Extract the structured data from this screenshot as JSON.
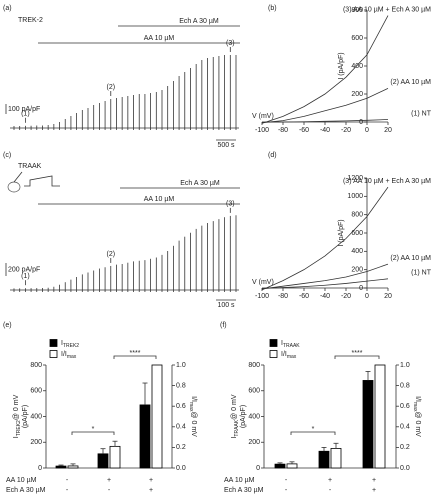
{
  "chart_data": [
    {
      "type": "trace",
      "panel": "(a)",
      "title": "TREK-2",
      "treatments": [
        "Ech A 30 µM",
        "AA 10 µM"
      ],
      "markers": [
        "(1)",
        "(2)",
        "(3)"
      ],
      "scalebar_y": {
        "value": 100,
        "label": "100 pA/pF"
      },
      "scalebar_x": "500 s",
      "color": "#333333",
      "values": [
        20,
        20,
        22,
        22,
        25,
        25,
        30,
        40,
        60,
        90,
        120,
        150,
        180,
        200,
        230,
        250,
        270,
        290,
        300,
        310,
        320,
        330,
        340,
        340,
        350,
        360,
        380,
        420,
        470,
        520,
        560,
        600,
        640,
        680,
        700,
        710,
        720,
        730,
        730,
        730
      ]
    },
    {
      "type": "line",
      "panel": "(b)",
      "xlabel": "V (mV)",
      "ylabel": "I (pA/pF)",
      "x": [
        -100,
        -80,
        -60,
        -40,
        -20,
        0,
        20
      ],
      "xlim": [
        -100,
        20
      ],
      "xticks": [
        -100,
        -80,
        -60,
        -40,
        -20,
        0,
        20
      ],
      "ylim": [
        0,
        800
      ],
      "yticks": [
        0,
        200,
        400,
        600,
        800
      ],
      "series": [
        {
          "name": "(3) AA 10 µM + Ech A 30 µM",
          "color": "#333333",
          "values": [
            -10,
            40,
            110,
            200,
            320,
            480,
            760
          ]
        },
        {
          "name": "(2) AA 10 µM",
          "color": "#333333",
          "values": [
            -5,
            10,
            40,
            80,
            120,
            170,
            240
          ]
        },
        {
          "name": "(1) NT",
          "color": "#333333",
          "values": [
            -2,
            0,
            2,
            5,
            8,
            12,
            18
          ]
        }
      ]
    },
    {
      "type": "trace",
      "panel": "(c)",
      "title": "TRAAK",
      "treatments": [
        "Ech A 30 µM",
        "AA 10 µM"
      ],
      "markers": [
        "(1)",
        "(2)",
        "(3)"
      ],
      "scalebar_y": {
        "value": 200,
        "label": "200 pA/pF"
      },
      "scalebar_x": "100 s",
      "color": "#333333",
      "values": [
        25,
        25,
        28,
        28,
        30,
        30,
        35,
        50,
        80,
        120,
        160,
        200,
        240,
        270,
        300,
        330,
        350,
        370,
        390,
        400,
        420,
        440,
        450,
        460,
        480,
        500,
        540,
        600,
        680,
        760,
        820,
        880,
        940,
        990,
        1030,
        1060,
        1090,
        1120,
        1140,
        1150
      ]
    },
    {
      "type": "line",
      "panel": "(d)",
      "xlabel": "V (mV)",
      "ylabel": "I (pA/pF)",
      "x": [
        -100,
        -80,
        -60,
        -40,
        -20,
        0,
        20
      ],
      "xlim": [
        -100,
        20
      ],
      "xticks": [
        -100,
        -80,
        -60,
        -40,
        -20,
        0,
        20
      ],
      "ylim": [
        0,
        1200
      ],
      "yticks": [
        0,
        200,
        400,
        600,
        800,
        1000,
        1200
      ],
      "series": [
        {
          "name": "(3) AA 10 µM + Ech A 30 µM",
          "color": "#333333",
          "values": [
            -20,
            80,
            200,
            350,
            540,
            780,
            1100
          ]
        },
        {
          "name": "(2) AA 10 µM",
          "color": "#333333",
          "values": [
            -10,
            20,
            50,
            80,
            120,
            180,
            260
          ]
        },
        {
          "name": "(1) NT",
          "color": "#333333",
          "values": [
            -5,
            5,
            15,
            30,
            50,
            75,
            100
          ]
        }
      ]
    },
    {
      "type": "bar",
      "panel": "(e)",
      "ylabel": {
        "main": "I",
        "sub": "TREK2",
        "rest": "@ 0 mV",
        "unit": "(pA/pF)"
      },
      "y2label": {
        "main": "I/I",
        "sub": "max",
        "rest": "@ 0 mV"
      },
      "ylim": [
        0,
        800
      ],
      "yticks": [
        0,
        200,
        400,
        600,
        800
      ],
      "y2lim": [
        0,
        1
      ],
      "y2ticks": [
        {
          "value": 0,
          "label": "0.0"
        },
        0.2,
        0.4,
        0.6,
        0.8,
        {
          "value": 1,
          "label": "1.0"
        }
      ],
      "series": [
        {
          "name": "I",
          "name_sub": "TREK2",
          "color": "#000000",
          "values": [
            15,
            110,
            490
          ],
          "errors": [
            8,
            40,
            170
          ]
        },
        {
          "name": "I/I",
          "name_sub": "max",
          "color": "#ffffff",
          "axis": "y2",
          "values": [
            0.02,
            0.21,
            1.0
          ],
          "errors": [
            0.02,
            0.05,
            0
          ]
        }
      ],
      "conditions": [
        {
          "label": "AA 10 µM",
          "values": [
            "-",
            "+",
            "+"
          ]
        },
        {
          "label": "Ech A 30 µM",
          "values": [
            "-",
            "-",
            "+"
          ]
        }
      ],
      "significance": [
        "*",
        "****"
      ]
    },
    {
      "type": "bar",
      "panel": "(f)",
      "ylabel": {
        "main": "I",
        "sub": "TRAAK",
        "rest": "@ 0 mV",
        "unit": "(pA/pF)"
      },
      "y2label": {
        "main": "I/I",
        "sub": "max",
        "rest": "@ 0 mV"
      },
      "ylim": [
        0,
        800
      ],
      "yticks": [
        0,
        200,
        400,
        600,
        800
      ],
      "y2lim": [
        0,
        1
      ],
      "y2ticks": [
        {
          "value": 0,
          "label": "0.0"
        },
        0.2,
        0.4,
        0.6,
        0.8,
        {
          "value": 1,
          "label": "1.0"
        }
      ],
      "series": [
        {
          "name": "I",
          "name_sub": "TRAAK",
          "color": "#000000",
          "values": [
            30,
            130,
            680
          ],
          "errors": [
            10,
            30,
            70
          ]
        },
        {
          "name": "I/I",
          "name_sub": "max",
          "color": "#ffffff",
          "axis": "y2",
          "values": [
            0.04,
            0.19,
            1.0
          ],
          "errors": [
            0.02,
            0.05,
            0
          ]
        }
      ],
      "conditions": [
        {
          "label": "AA 10 µM",
          "values": [
            "-",
            "+",
            "+"
          ]
        },
        {
          "label": "Ech A 30 µM",
          "values": [
            "-",
            "-",
            "+"
          ]
        }
      ],
      "significance": [
        "*",
        "****"
      ]
    }
  ]
}
